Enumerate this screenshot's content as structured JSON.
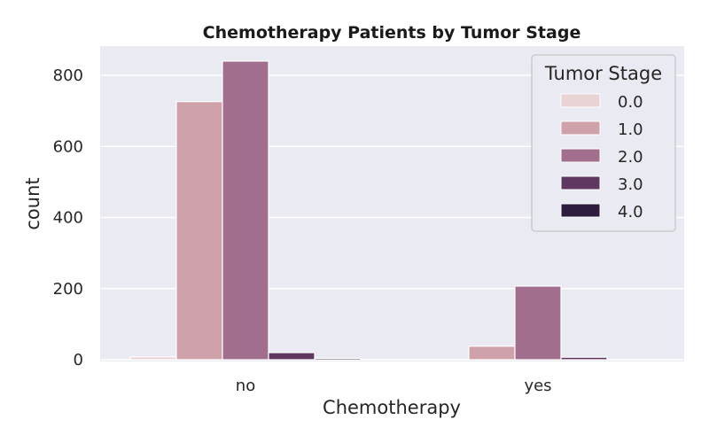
{
  "chart_data": {
    "type": "bar",
    "title": "Chemotherapy Patients by Tumor Stage",
    "xlabel": "Chemotherapy",
    "ylabel": "count",
    "categories": [
      "no",
      "yes"
    ],
    "ylim": [
      0,
      880
    ],
    "yticks": [
      0,
      200,
      400,
      600,
      800
    ],
    "grid": true,
    "legend": {
      "title": "Tumor Stage",
      "placement": "top-right"
    },
    "series": [
      {
        "name": "0.0",
        "color": "#ead3d4",
        "values": [
          8,
          0
        ]
      },
      {
        "name": "1.0",
        "color": "#cfa1ab",
        "values": [
          726,
          38
        ]
      },
      {
        "name": "2.0",
        "color": "#a16f8d",
        "values": [
          840,
          207
        ]
      },
      {
        "name": "3.0",
        "color": "#5e3861",
        "values": [
          20,
          7
        ]
      },
      {
        "name": "4.0",
        "color": "#2c1c3d",
        "values": [
          4,
          0
        ]
      }
    ]
  }
}
